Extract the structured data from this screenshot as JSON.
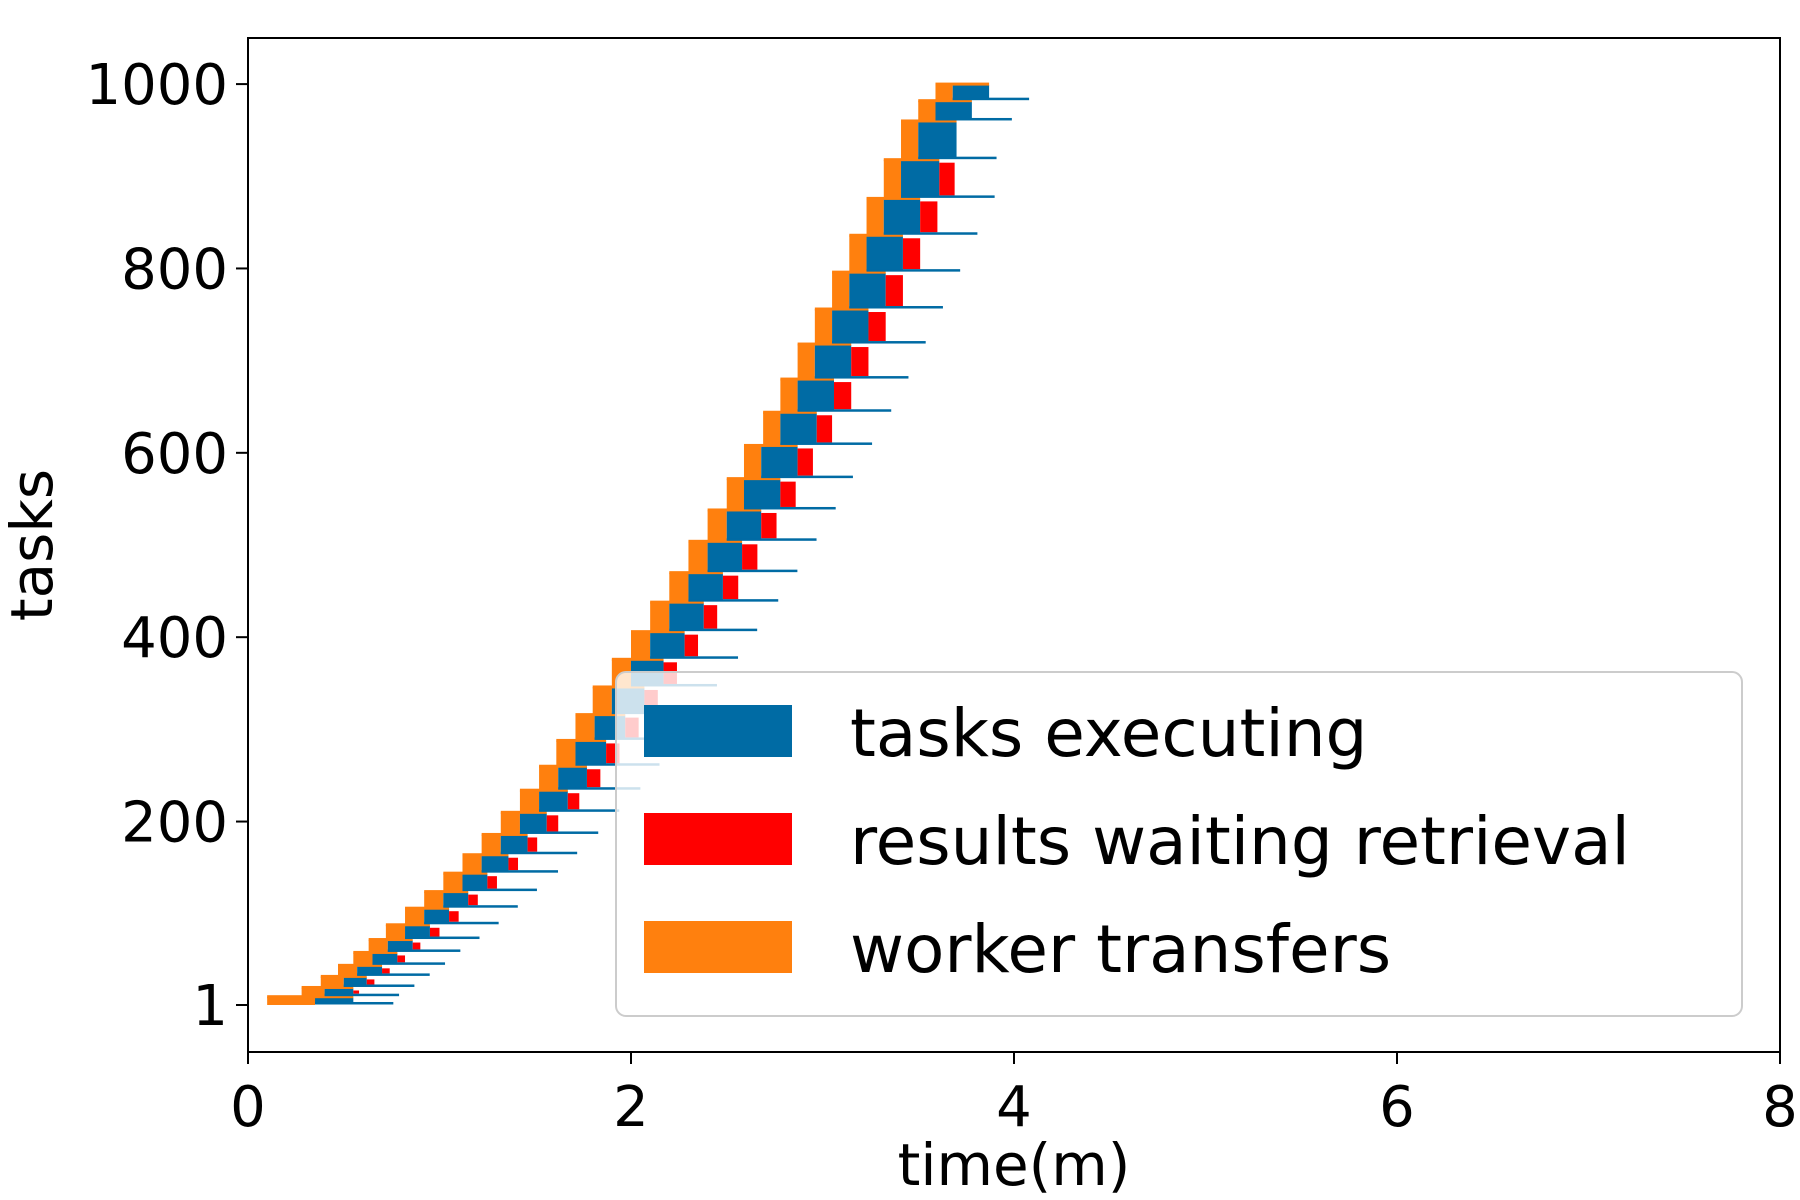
{
  "chart_data": {
    "type": "bar",
    "subtype": "gantt-staircase",
    "title": "",
    "xlabel": "time(m)",
    "ylabel": "tasks",
    "xlim": [
      0,
      8
    ],
    "ylim": [
      -50,
      1050
    ],
    "x_ticks": [
      0,
      2,
      4,
      6,
      8
    ],
    "x_tick_labels": [
      "0",
      "2",
      "4",
      "6",
      "8"
    ],
    "y_ticks": [
      1,
      200,
      400,
      600,
      800,
      1000
    ],
    "y_tick_labels": [
      "1",
      "200",
      "400",
      "600",
      "800",
      "1000"
    ],
    "grid": false,
    "legend_position": "lower-right",
    "series": [
      {
        "name": "tasks executing",
        "color": "#006ba4"
      },
      {
        "name": "results waiting retrieval",
        "color": "#ff0000"
      },
      {
        "name": "worker transfers",
        "color": "#ff800e"
      }
    ],
    "batches": [
      {
        "task_start": 1,
        "task_end": 10,
        "transfer_start": 0.1,
        "exec_start": 0.35,
        "wait_start": 0.55,
        "wait_end": 0.55
      },
      {
        "task_start": 10,
        "task_end": 20,
        "transfer_start": 0.28,
        "exec_start": 0.4,
        "wait_start": 0.55,
        "wait_end": 0.58
      },
      {
        "task_start": 20,
        "task_end": 32,
        "transfer_start": 0.38,
        "exec_start": 0.5,
        "wait_start": 0.62,
        "wait_end": 0.66
      },
      {
        "task_start": 32,
        "task_end": 44,
        "transfer_start": 0.47,
        "exec_start": 0.57,
        "wait_start": 0.7,
        "wait_end": 0.74
      },
      {
        "task_start": 44,
        "task_end": 58,
        "transfer_start": 0.55,
        "exec_start": 0.65,
        "wait_start": 0.78,
        "wait_end": 0.82
      },
      {
        "task_start": 58,
        "task_end": 72,
        "transfer_start": 0.63,
        "exec_start": 0.73,
        "wait_start": 0.86,
        "wait_end": 0.9
      },
      {
        "task_start": 72,
        "task_end": 88,
        "transfer_start": 0.72,
        "exec_start": 0.82,
        "wait_start": 0.95,
        "wait_end": 1.0
      },
      {
        "task_start": 88,
        "task_end": 106,
        "transfer_start": 0.82,
        "exec_start": 0.92,
        "wait_start": 1.05,
        "wait_end": 1.1
      },
      {
        "task_start": 106,
        "task_end": 124,
        "transfer_start": 0.92,
        "exec_start": 1.02,
        "wait_start": 1.15,
        "wait_end": 1.2
      },
      {
        "task_start": 124,
        "task_end": 144,
        "transfer_start": 1.02,
        "exec_start": 1.12,
        "wait_start": 1.25,
        "wait_end": 1.3
      },
      {
        "task_start": 144,
        "task_end": 164,
        "transfer_start": 1.12,
        "exec_start": 1.22,
        "wait_start": 1.36,
        "wait_end": 1.41
      },
      {
        "task_start": 164,
        "task_end": 186,
        "transfer_start": 1.22,
        "exec_start": 1.32,
        "wait_start": 1.46,
        "wait_end": 1.51
      },
      {
        "task_start": 186,
        "task_end": 210,
        "transfer_start": 1.32,
        "exec_start": 1.42,
        "wait_start": 1.56,
        "wait_end": 1.62
      },
      {
        "task_start": 210,
        "task_end": 234,
        "transfer_start": 1.42,
        "exec_start": 1.52,
        "wait_start": 1.67,
        "wait_end": 1.73
      },
      {
        "task_start": 234,
        "task_end": 260,
        "transfer_start": 1.52,
        "exec_start": 1.62,
        "wait_start": 1.77,
        "wait_end": 1.84
      },
      {
        "task_start": 260,
        "task_end": 288,
        "transfer_start": 1.61,
        "exec_start": 1.71,
        "wait_start": 1.87,
        "wait_end": 1.94
      },
      {
        "task_start": 288,
        "task_end": 316,
        "transfer_start": 1.71,
        "exec_start": 1.81,
        "wait_start": 1.97,
        "wait_end": 2.04
      },
      {
        "task_start": 316,
        "task_end": 346,
        "transfer_start": 1.8,
        "exec_start": 1.9,
        "wait_start": 2.07,
        "wait_end": 2.14
      },
      {
        "task_start": 346,
        "task_end": 376,
        "transfer_start": 1.9,
        "exec_start": 2.0,
        "wait_start": 2.17,
        "wait_end": 2.24
      },
      {
        "task_start": 376,
        "task_end": 406,
        "transfer_start": 2.0,
        "exec_start": 2.1,
        "wait_start": 2.28,
        "wait_end": 2.35
      },
      {
        "task_start": 406,
        "task_end": 438,
        "transfer_start": 2.1,
        "exec_start": 2.2,
        "wait_start": 2.38,
        "wait_end": 2.45
      },
      {
        "task_start": 438,
        "task_end": 470,
        "transfer_start": 2.2,
        "exec_start": 2.3,
        "wait_start": 2.48,
        "wait_end": 2.56
      },
      {
        "task_start": 470,
        "task_end": 504,
        "transfer_start": 2.3,
        "exec_start": 2.4,
        "wait_start": 2.58,
        "wait_end": 2.66
      },
      {
        "task_start": 504,
        "task_end": 538,
        "transfer_start": 2.4,
        "exec_start": 2.5,
        "wait_start": 2.68,
        "wait_end": 2.76
      },
      {
        "task_start": 538,
        "task_end": 572,
        "transfer_start": 2.5,
        "exec_start": 2.59,
        "wait_start": 2.78,
        "wait_end": 2.86
      },
      {
        "task_start": 572,
        "task_end": 608,
        "transfer_start": 2.59,
        "exec_start": 2.68,
        "wait_start": 2.87,
        "wait_end": 2.95
      },
      {
        "task_start": 608,
        "task_end": 644,
        "transfer_start": 2.69,
        "exec_start": 2.78,
        "wait_start": 2.97,
        "wait_end": 3.05
      },
      {
        "task_start": 644,
        "task_end": 680,
        "transfer_start": 2.78,
        "exec_start": 2.87,
        "wait_start": 3.06,
        "wait_end": 3.15
      },
      {
        "task_start": 680,
        "task_end": 718,
        "transfer_start": 2.87,
        "exec_start": 2.96,
        "wait_start": 3.15,
        "wait_end": 3.24
      },
      {
        "task_start": 718,
        "task_end": 756,
        "transfer_start": 2.96,
        "exec_start": 3.05,
        "wait_start": 3.24,
        "wait_end": 3.33
      },
      {
        "task_start": 756,
        "task_end": 796,
        "transfer_start": 3.05,
        "exec_start": 3.14,
        "wait_start": 3.33,
        "wait_end": 3.42
      },
      {
        "task_start": 796,
        "task_end": 836,
        "transfer_start": 3.14,
        "exec_start": 3.23,
        "wait_start": 3.42,
        "wait_end": 3.51
      },
      {
        "task_start": 836,
        "task_end": 876,
        "transfer_start": 3.23,
        "exec_start": 3.32,
        "wait_start": 3.51,
        "wait_end": 3.6
      },
      {
        "task_start": 876,
        "task_end": 918,
        "transfer_start": 3.32,
        "exec_start": 3.41,
        "wait_start": 3.61,
        "wait_end": 3.69
      },
      {
        "task_start": 918,
        "task_end": 960,
        "transfer_start": 3.41,
        "exec_start": 3.5,
        "wait_start": 3.7,
        "wait_end": 3.7
      },
      {
        "task_start": 960,
        "task_end": 982,
        "transfer_start": 3.5,
        "exec_start": 3.59,
        "wait_start": 3.78,
        "wait_end": 3.78
      },
      {
        "task_start": 982,
        "task_end": 1000,
        "transfer_start": 3.59,
        "exec_start": 3.68,
        "wait_start": 3.87,
        "wait_end": 3.87
      }
    ]
  }
}
